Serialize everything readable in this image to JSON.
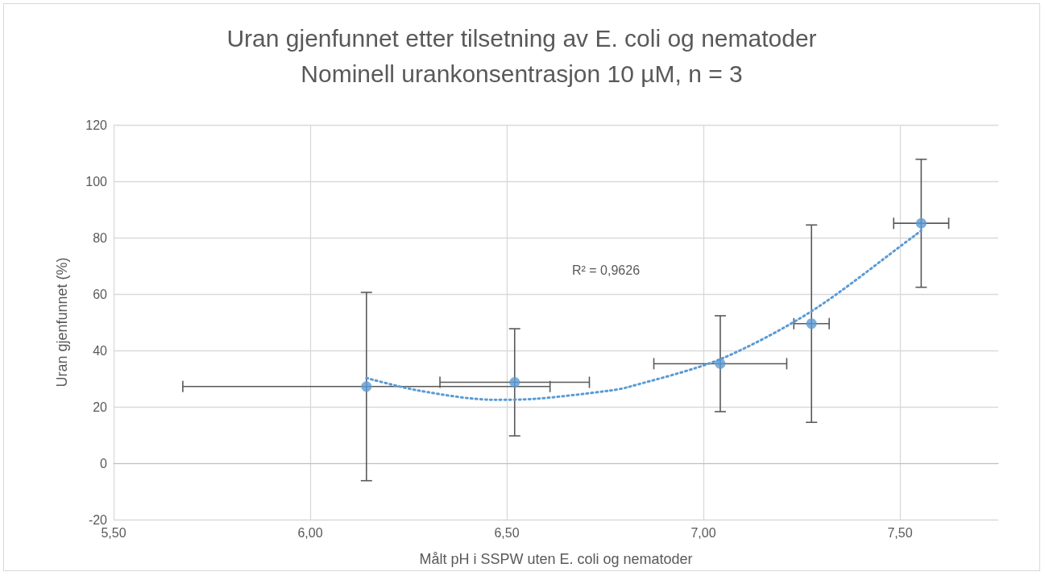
{
  "chart_data": {
    "type": "scatter",
    "title": "Uran gjenfunnet etter tilsetning av E. coli og nematoder",
    "subtitle": "Nominell urankonsentrasjon 10 µM, n = 3",
    "xlabel": "Målt pH i SSPW uten E. coli og nematoder",
    "ylabel": "Uran gjenfunnet (%)",
    "x": [
      6.143,
      6.52,
      7.043,
      7.275,
      7.554
    ],
    "series": [
      {
        "color": "#5b9bd5",
        "values": [
          27.2,
          28.7,
          35.3,
          49.5,
          85.1
        ],
        "errors": [
          33.4,
          19,
          17,
          35,
          22.7
        ],
        "xerrors": [
          0.467,
          0.19,
          0.169,
          0.045,
          0.07
        ]
      },
      {
        "type": "line",
        "color": "#5b9bd5",
        "line_style": "dotted",
        "marker": "none",
        "x": [
          6.143,
          6.278,
          6.467,
          6.569,
          6.759,
          6.809,
          7.043,
          7.275,
          7.537,
          7.554
        ],
        "values": [
          30.2,
          25.7,
          22.5,
          22.8,
          25.7,
          27.0,
          36.9,
          53.9,
          80.7,
          82.5
        ]
      }
    ],
    "annotations": [
      "R² = 0,9626"
    ],
    "xlim": [
      5.5,
      7.75
    ],
    "xticks": [
      {
        "value": 5.5,
        "label": "5,50"
      },
      {
        "value": 6,
        "label": "6,00"
      },
      {
        "value": 6.5,
        "label": "6,50"
      },
      {
        "value": 7,
        "label": "7,00"
      },
      {
        "value": 7.5,
        "label": "7,50"
      }
    ],
    "ylim": [
      -20,
      120
    ],
    "yticks": [
      -20,
      0,
      20,
      40,
      60,
      80,
      100,
      120
    ],
    "grid": true,
    "marker": "circle"
  }
}
